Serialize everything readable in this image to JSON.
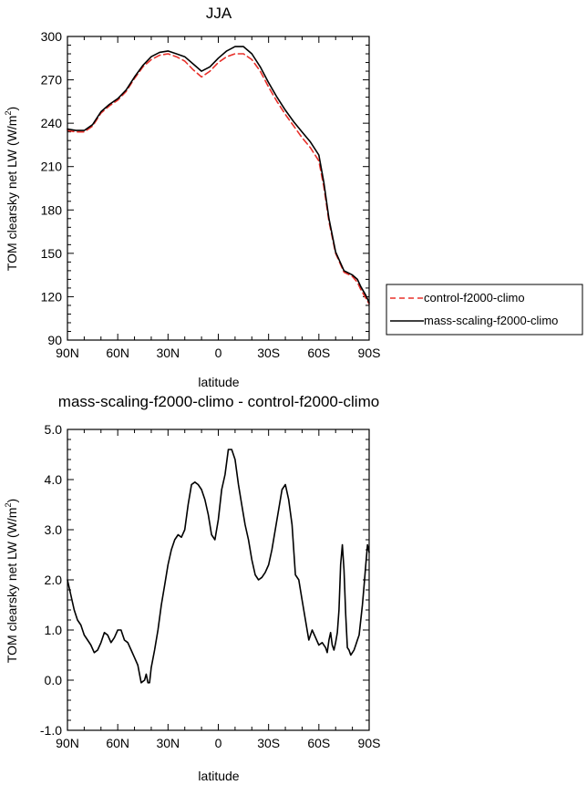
{
  "chart_data": [
    {
      "type": "line",
      "title": "JJA",
      "xlabel": "latitude",
      "ylabel": "TOM clearsky net LW (W/m",
      "ylabel_sup": "2",
      "ylabel_close": ")",
      "xlim": [
        -90,
        90
      ],
      "ylim": [
        90,
        300
      ],
      "x_ticks": [
        -90,
        -60,
        -30,
        0,
        30,
        60,
        90
      ],
      "x_tick_labels": [
        "90N",
        "60N",
        "30N",
        "0",
        "30S",
        "60S",
        "90S"
      ],
      "y_ticks": [
        90,
        120,
        150,
        180,
        210,
        240,
        270,
        300
      ],
      "y_tick_labels": [
        "90",
        "120",
        "150",
        "180",
        "210",
        "240",
        "270",
        "300"
      ],
      "legend_position": "right",
      "series": [
        {
          "name": "control-f2000-climo",
          "color": "#e8302a",
          "dash": "dashed",
          "x": [
            -90,
            -85,
            -80,
            -75,
            -70,
            -65,
            -60,
            -55,
            -50,
            -45,
            -40,
            -35,
            -30,
            -25,
            -20,
            -15,
            -10,
            -5,
            0,
            5,
            10,
            15,
            20,
            25,
            30,
            35,
            40,
            45,
            50,
            55,
            60,
            63,
            66,
            70,
            75,
            80,
            83,
            85,
            88,
            90
          ],
          "y": [
            235,
            234,
            234,
            238,
            247,
            252,
            256,
            262,
            271,
            279,
            284,
            287,
            288,
            286,
            283,
            277,
            272,
            276,
            282,
            286,
            288,
            288,
            284,
            276,
            265,
            255,
            246,
            238,
            230,
            223,
            214,
            196,
            172,
            150,
            137,
            134,
            130,
            125,
            119,
            115
          ]
        },
        {
          "name": "mass-scaling-f2000-climo",
          "color": "#000000",
          "dash": "solid",
          "x": [
            -90,
            -85,
            -80,
            -75,
            -70,
            -65,
            -60,
            -55,
            -50,
            -45,
            -40,
            -35,
            -30,
            -25,
            -20,
            -15,
            -10,
            -5,
            0,
            5,
            10,
            15,
            20,
            25,
            30,
            35,
            40,
            45,
            50,
            55,
            60,
            63,
            66,
            70,
            75,
            80,
            83,
            85,
            88,
            90
          ],
          "y": [
            236,
            235,
            235,
            239,
            248,
            253,
            257,
            263,
            272,
            280,
            286,
            289,
            290,
            288,
            286,
            281,
            276,
            279,
            285,
            290,
            293,
            293,
            288,
            279,
            268,
            258,
            249,
            241,
            234,
            227,
            218,
            199,
            174,
            151,
            138,
            135,
            132,
            127,
            121,
            116
          ]
        }
      ]
    },
    {
      "type": "line",
      "title": "mass-scaling-f2000-climo - control-f2000-climo",
      "xlabel": "latitude",
      "ylabel": "TOM clearsky net LW (W/m",
      "ylabel_sup": "2",
      "ylabel_close": ")",
      "xlim": [
        -90,
        90
      ],
      "ylim": [
        -1.0,
        5.0
      ],
      "x_ticks": [
        -90,
        -60,
        -30,
        0,
        30,
        60,
        90
      ],
      "x_tick_labels": [
        "90N",
        "60N",
        "30N",
        "0",
        "30S",
        "60S",
        "90S"
      ],
      "y_ticks": [
        -1.0,
        0.0,
        1.0,
        2.0,
        3.0,
        4.0,
        5.0
      ],
      "y_tick_labels": [
        "-1.0",
        "0.0",
        "1.0",
        "2.0",
        "3.0",
        "4.0",
        "5.0"
      ],
      "series": [
        {
          "color": "#000000",
          "dash": "solid",
          "x": [
            -90,
            -88,
            -86,
            -84,
            -82,
            -80,
            -78,
            -76,
            -74,
            -72,
            -70,
            -68,
            -66,
            -64,
            -62,
            -60,
            -58,
            -56,
            -54,
            -52,
            -50,
            -48,
            -46,
            -44,
            -43,
            -42,
            -41,
            -40,
            -38,
            -36,
            -34,
            -32,
            -30,
            -28,
            -26,
            -24,
            -22,
            -20,
            -18,
            -16,
            -14,
            -12,
            -10,
            -8,
            -6,
            -4,
            -2,
            0,
            2,
            4,
            6,
            8,
            10,
            12,
            14,
            16,
            18,
            20,
            22,
            24,
            26,
            28,
            30,
            32,
            34,
            36,
            38,
            40,
            42,
            44,
            46,
            48,
            50,
            52,
            54,
            56,
            58,
            60,
            62,
            64,
            65,
            66,
            67,
            68,
            69,
            70,
            71,
            72,
            73,
            74,
            75,
            76,
            77,
            78,
            79,
            80,
            81,
            82,
            83,
            84,
            85,
            86,
            87,
            88,
            89,
            90
          ],
          "y": [
            2.0,
            1.7,
            1.4,
            1.2,
            1.1,
            0.9,
            0.8,
            0.7,
            0.55,
            0.6,
            0.75,
            0.95,
            0.9,
            0.75,
            0.85,
            1.0,
            1.0,
            0.8,
            0.75,
            0.6,
            0.45,
            0.3,
            -0.05,
            0.0,
            0.12,
            -0.05,
            -0.05,
            0.25,
            0.6,
            1.0,
            1.5,
            1.9,
            2.3,
            2.6,
            2.8,
            2.9,
            2.85,
            3.0,
            3.5,
            3.9,
            3.95,
            3.9,
            3.8,
            3.6,
            3.3,
            2.9,
            2.8,
            3.2,
            3.8,
            4.1,
            4.6,
            4.6,
            4.4,
            3.9,
            3.5,
            3.1,
            2.8,
            2.4,
            2.1,
            2.0,
            2.05,
            2.15,
            2.3,
            2.6,
            3.0,
            3.4,
            3.8,
            3.9,
            3.6,
            3.1,
            2.1,
            2.0,
            1.6,
            1.2,
            0.8,
            1.0,
            0.85,
            0.7,
            0.75,
            0.65,
            0.55,
            0.8,
            0.95,
            0.7,
            0.6,
            0.75,
            0.95,
            1.4,
            2.3,
            2.7,
            2.2,
            1.3,
            0.65,
            0.6,
            0.5,
            0.55,
            0.6,
            0.7,
            0.8,
            0.9,
            1.2,
            1.5,
            1.9,
            2.3,
            2.7,
            2.55
          ]
        }
      ]
    }
  ]
}
